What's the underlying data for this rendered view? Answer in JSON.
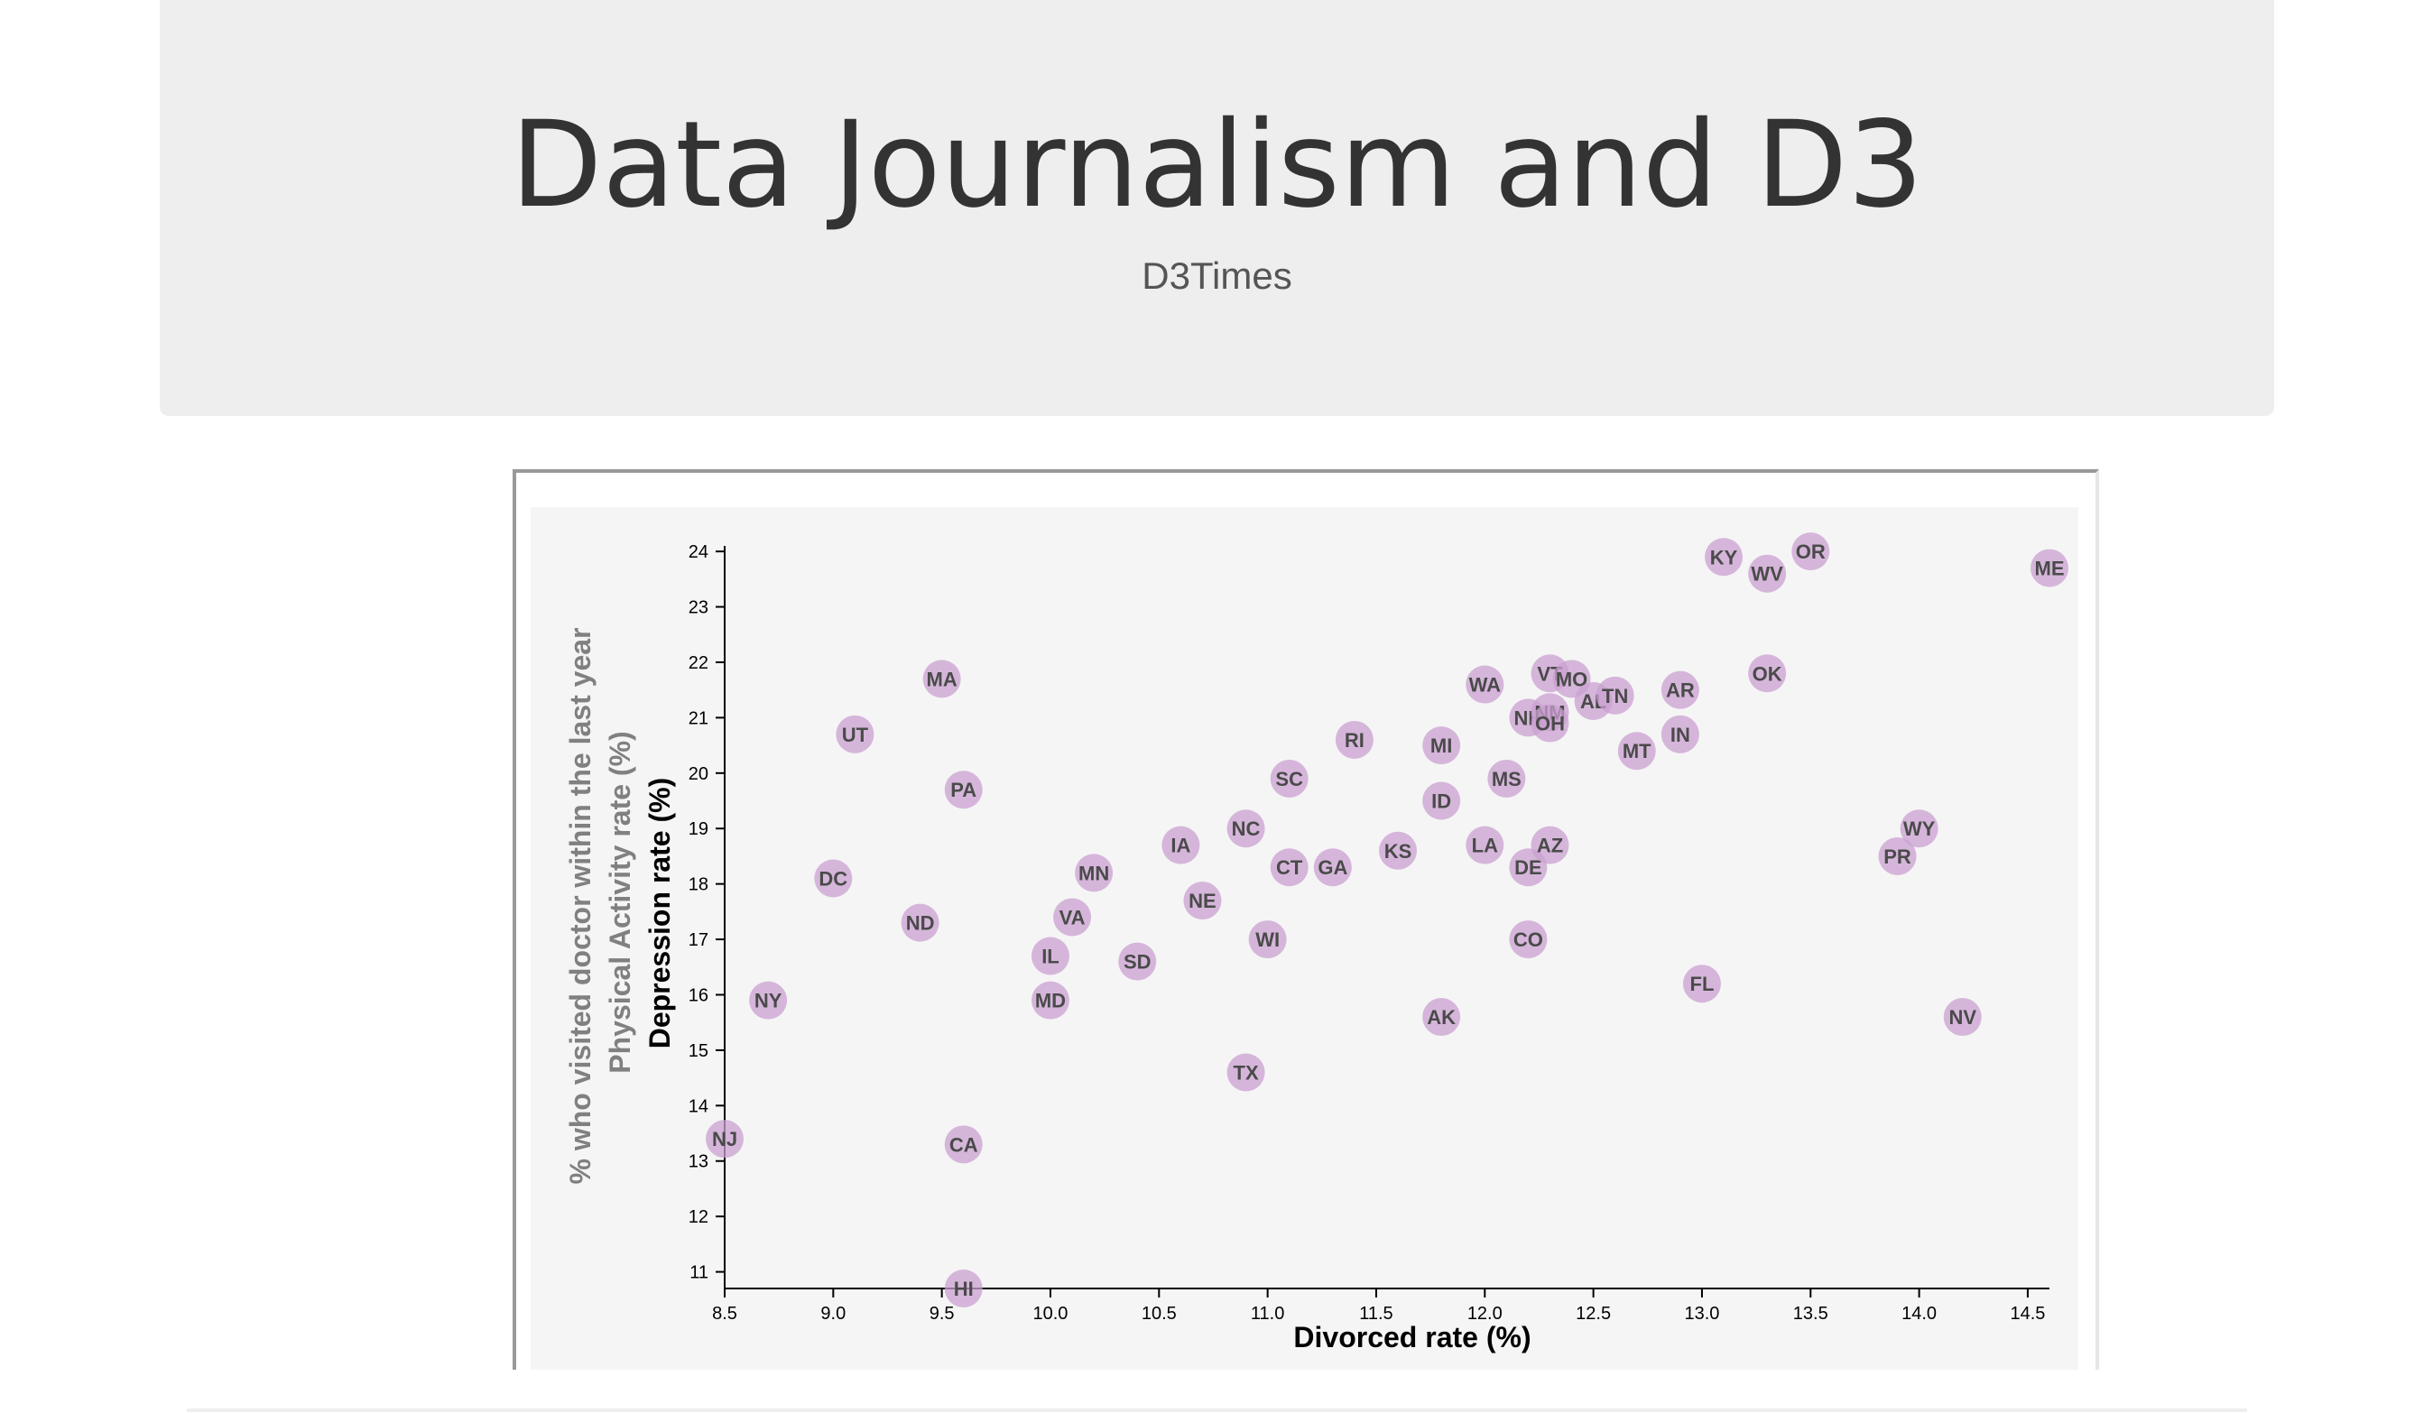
{
  "header": {
    "title": "Data Journalism and D3",
    "byline": "D3Times"
  },
  "chart_data": {
    "type": "scatter",
    "xlabel": "Divorced rate (%)",
    "ylabel": "Depression rate (%)",
    "inactive_y_labels": [
      "Physical Activity rate (%)",
      "% who visited doctor within the last year"
    ],
    "xlim": [
      8.5,
      14.6
    ],
    "ylim": [
      10.7,
      24.1
    ],
    "x_ticks": [
      "8.5",
      "9.0",
      "9.5",
      "10.0",
      "10.5",
      "11.0",
      "11.5",
      "12.0",
      "12.5",
      "13.0",
      "13.5",
      "14.0",
      "14.5"
    ],
    "y_ticks": [
      "11",
      "12",
      "13",
      "14",
      "15",
      "16",
      "17",
      "18",
      "19",
      "20",
      "21",
      "22",
      "23",
      "24"
    ],
    "marker_color": "#c9a0d0",
    "label_color": "#4a4a4a",
    "points": [
      {
        "state": "NJ",
        "x": 8.5,
        "y": 13.4
      },
      {
        "state": "NY",
        "x": 8.7,
        "y": 15.9
      },
      {
        "state": "DC",
        "x": 9.0,
        "y": 18.1
      },
      {
        "state": "UT",
        "x": 9.1,
        "y": 20.7
      },
      {
        "state": "ND",
        "x": 9.4,
        "y": 17.3
      },
      {
        "state": "MA",
        "x": 9.5,
        "y": 21.7
      },
      {
        "state": "PA",
        "x": 9.6,
        "y": 19.7
      },
      {
        "state": "CA",
        "x": 9.6,
        "y": 13.3
      },
      {
        "state": "HI",
        "x": 9.6,
        "y": 10.7
      },
      {
        "state": "IL",
        "x": 10.0,
        "y": 16.7
      },
      {
        "state": "MD",
        "x": 10.0,
        "y": 15.9
      },
      {
        "state": "VA",
        "x": 10.1,
        "y": 17.4
      },
      {
        "state": "MN",
        "x": 10.2,
        "y": 18.2
      },
      {
        "state": "SD",
        "x": 10.4,
        "y": 16.6
      },
      {
        "state": "IA",
        "x": 10.6,
        "y": 18.7
      },
      {
        "state": "NE",
        "x": 10.7,
        "y": 17.7
      },
      {
        "state": "NC",
        "x": 10.9,
        "y": 19.0
      },
      {
        "state": "TX",
        "x": 10.9,
        "y": 14.6
      },
      {
        "state": "WI",
        "x": 11.0,
        "y": 17.0
      },
      {
        "state": "SC",
        "x": 11.1,
        "y": 19.9
      },
      {
        "state": "CT",
        "x": 11.1,
        "y": 18.3
      },
      {
        "state": "GA",
        "x": 11.3,
        "y": 18.3
      },
      {
        "state": "RI",
        "x": 11.4,
        "y": 20.6
      },
      {
        "state": "KS",
        "x": 11.6,
        "y": 18.6
      },
      {
        "state": "MI",
        "x": 11.8,
        "y": 20.5
      },
      {
        "state": "ID",
        "x": 11.8,
        "y": 19.5
      },
      {
        "state": "AK",
        "x": 11.8,
        "y": 15.6
      },
      {
        "state": "WA",
        "x": 12.0,
        "y": 21.6
      },
      {
        "state": "LA",
        "x": 12.0,
        "y": 18.7
      },
      {
        "state": "MS",
        "x": 12.1,
        "y": 19.9
      },
      {
        "state": "NH",
        "x": 12.2,
        "y": 21.0
      },
      {
        "state": "DE",
        "x": 12.2,
        "y": 18.3
      },
      {
        "state": "CO",
        "x": 12.2,
        "y": 17.0
      },
      {
        "state": "VT",
        "x": 12.3,
        "y": 21.8
      },
      {
        "state": "NM",
        "x": 12.3,
        "y": 21.1
      },
      {
        "state": "OH",
        "x": 12.3,
        "y": 20.9
      },
      {
        "state": "AZ",
        "x": 12.3,
        "y": 18.7
      },
      {
        "state": "MO",
        "x": 12.4,
        "y": 21.7
      },
      {
        "state": "AL",
        "x": 12.5,
        "y": 21.3
      },
      {
        "state": "TN",
        "x": 12.6,
        "y": 21.4
      },
      {
        "state": "MT",
        "x": 12.7,
        "y": 20.4
      },
      {
        "state": "AR",
        "x": 12.9,
        "y": 21.5
      },
      {
        "state": "IN",
        "x": 12.9,
        "y": 20.7
      },
      {
        "state": "FL",
        "x": 13.0,
        "y": 16.2
      },
      {
        "state": "KY",
        "x": 13.1,
        "y": 23.9
      },
      {
        "state": "WV",
        "x": 13.3,
        "y": 23.6
      },
      {
        "state": "OK",
        "x": 13.3,
        "y": 21.8
      },
      {
        "state": "OR",
        "x": 13.5,
        "y": 24.0
      },
      {
        "state": "PR",
        "x": 13.9,
        "y": 18.5
      },
      {
        "state": "WY",
        "x": 14.0,
        "y": 19.0
      },
      {
        "state": "NV",
        "x": 14.2,
        "y": 15.6
      },
      {
        "state": "ME",
        "x": 14.6,
        "y": 23.7
      }
    ]
  }
}
